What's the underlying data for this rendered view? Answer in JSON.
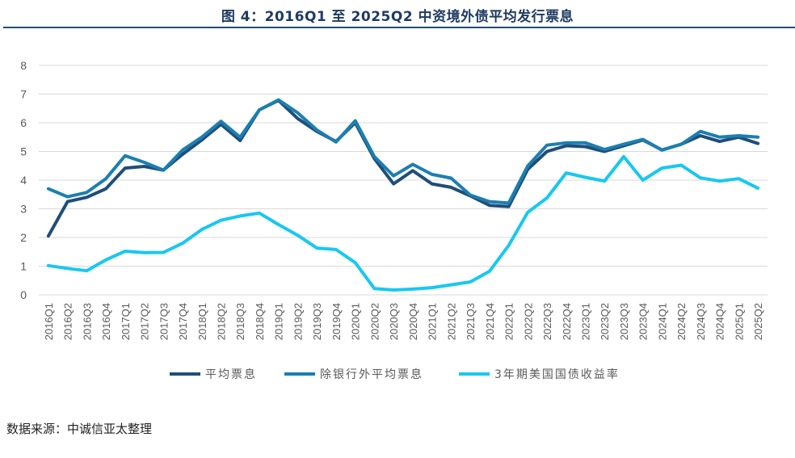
{
  "title": "图 4：2016Q1 至 2025Q2 中资境外债平均发行票息",
  "source": "数据来源：中诚信亚太整理",
  "chart_data": {
    "type": "line",
    "categories": [
      "2016Q1",
      "2016Q2",
      "2016Q3",
      "2016Q4",
      "2017Q1",
      "2017Q2",
      "2017Q3",
      "2017Q4",
      "2018Q1",
      "2018Q2",
      "2018Q3",
      "2018Q4",
      "2019Q1",
      "2019Q2",
      "2019Q3",
      "2019Q4",
      "2020Q1",
      "2020Q2",
      "2020Q3",
      "2020Q4",
      "2021Q1",
      "2021Q2",
      "2021Q3",
      "2021Q4",
      "2022Q1",
      "2022Q2",
      "2022Q3",
      "2022Q4",
      "2023Q1",
      "2023Q2",
      "2023Q3",
      "2023Q4",
      "2024Q1",
      "2024Q2",
      "2024Q3",
      "2024Q4",
      "2025Q1",
      "2025Q2"
    ],
    "ylim": [
      0,
      8
    ],
    "yticks": [
      0,
      1,
      2,
      3,
      4,
      5,
      6,
      7,
      8
    ],
    "grid": true,
    "legend_position": "bottom",
    "series": [
      {
        "name": "平均票息",
        "color": "#1f4e79",
        "values": [
          2.05,
          3.25,
          3.4,
          3.7,
          4.42,
          4.48,
          4.35,
          4.9,
          5.4,
          5.95,
          5.38,
          6.45,
          6.78,
          6.15,
          5.7,
          5.35,
          6.0,
          4.75,
          3.87,
          4.33,
          3.87,
          3.75,
          3.45,
          3.12,
          3.08,
          4.38,
          5.0,
          5.2,
          5.17,
          5.0,
          5.2,
          5.4,
          5.05,
          5.25,
          5.55,
          5.35,
          5.5,
          5.28
        ]
      },
      {
        "name": "除银行外平均票息",
        "color": "#1b7fb0",
        "values": [
          3.7,
          3.42,
          3.57,
          4.05,
          4.85,
          4.62,
          4.35,
          5.05,
          5.5,
          6.05,
          5.5,
          6.45,
          6.8,
          6.35,
          5.75,
          5.33,
          6.07,
          4.82,
          4.15,
          4.55,
          4.2,
          4.07,
          3.48,
          3.25,
          3.2,
          4.5,
          5.22,
          5.3,
          5.3,
          5.07,
          5.25,
          5.42,
          5.05,
          5.25,
          5.7,
          5.5,
          5.55,
          5.5
        ]
      },
      {
        "name": "3年期美国国债收益率",
        "color": "#17c8f0",
        "values": [
          1.02,
          0.92,
          0.84,
          1.22,
          1.52,
          1.47,
          1.48,
          1.8,
          2.28,
          2.6,
          2.75,
          2.85,
          2.45,
          2.08,
          1.63,
          1.58,
          1.12,
          0.22,
          0.17,
          0.2,
          0.25,
          0.35,
          0.45,
          0.82,
          1.72,
          2.88,
          3.38,
          4.25,
          4.1,
          3.97,
          4.82,
          4.0,
          4.42,
          4.52,
          4.08,
          3.97,
          4.05,
          3.72
        ]
      }
    ]
  }
}
